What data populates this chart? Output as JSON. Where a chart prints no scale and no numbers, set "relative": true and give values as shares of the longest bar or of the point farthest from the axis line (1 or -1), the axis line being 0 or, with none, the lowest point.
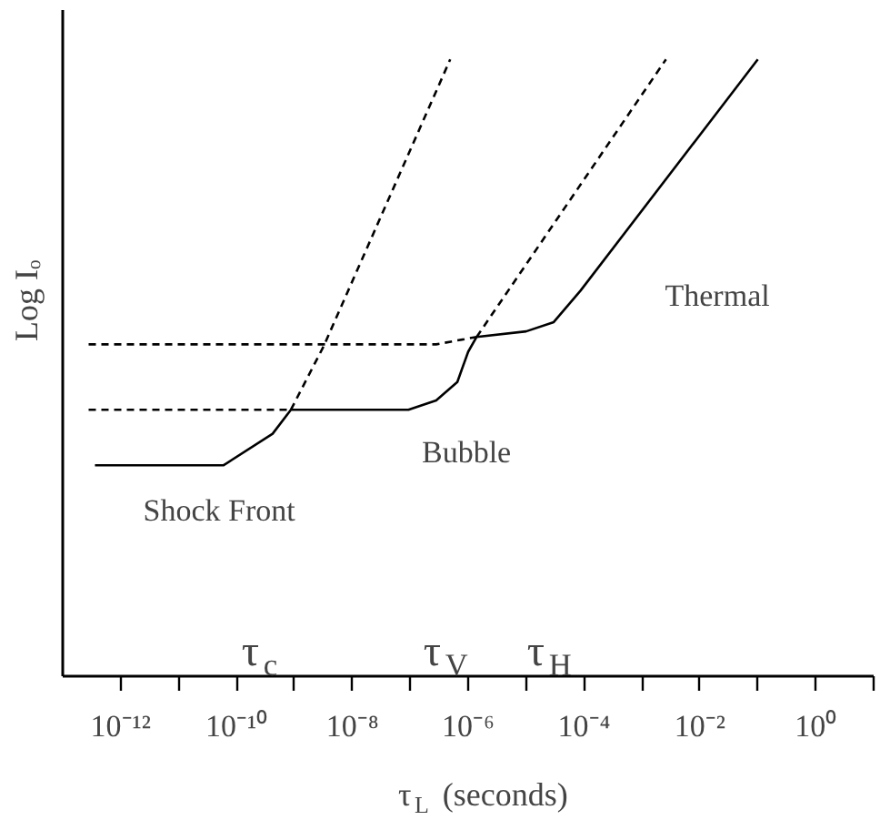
{
  "chart_data": {
    "type": "line",
    "relative": true,
    "log": "x",
    "xlabel": "τ$_{L}$ (seconds)",
    "ylabel": "Log Iₒ",
    "xlim": [
      1e-13,
      10
    ],
    "xticks": [
      {
        "value": 1e-12,
        "label": "10⁻¹²"
      },
      {
        "value": 1e-11,
        "label": null
      },
      {
        "value": 1e-10,
        "label": "10⁻¹⁰"
      },
      {
        "value": 1e-09,
        "label": null
      },
      {
        "value": 1e-08,
        "label": "10⁻⁸"
      },
      {
        "value": 1e-07,
        "label": null
      },
      {
        "value": 1e-06,
        "label": "10⁻⁶"
      },
      {
        "value": 1e-05,
        "label": null
      },
      {
        "value": 0.0001,
        "label": "10⁻⁴"
      },
      {
        "value": 0.001,
        "label": null
      },
      {
        "value": 0.01,
        "label": "10⁻²"
      },
      {
        "value": 0.1,
        "label": null
      },
      {
        "value": 1,
        "label": "10⁰"
      },
      {
        "value": 10,
        "label": null
      }
    ],
    "grid": false,
    "series": [
      {
        "color": "#000000",
        "line_style": "solid",
        "x": [
          3.6e-13,
          6e-11,
          4.2e-10,
          8.7e-10,
          9.3e-08,
          2.8e-07,
          6.5e-07,
          1e-06,
          1.4e-06,
          1e-05,
          3e-05,
          8.7e-05,
          0.1
        ],
        "values": [
          0.342,
          0.342,
          0.393,
          0.432,
          0.432,
          0.447,
          0.477,
          0.526,
          0.55,
          0.559,
          0.574,
          0.625,
          1.0
        ]
      },
      {
        "color": "#000000",
        "line_style": "dashed",
        "x": [
          8.7e-10,
          3.2e-09,
          4.9e-07
        ],
        "values": [
          0.432,
          0.535,
          1.0
        ]
      },
      {
        "color": "#000000",
        "line_style": "dashed",
        "x": [
          1.4e-06,
          0.0026
        ],
        "values": [
          0.55,
          1.0
        ]
      },
      {
        "color": "#000000",
        "line_style": "dashed",
        "x": [
          2.8e-13,
          8.7e-10
        ],
        "values": [
          0.432,
          0.432
        ]
      },
      {
        "color": "#000000",
        "line_style": "dashed",
        "x": [
          2.8e-13,
          2.8e-07,
          1.4e-06
        ],
        "values": [
          0.538,
          0.538,
          0.55
        ]
      }
    ],
    "annotations": [
      "Shock Front",
      "Bubble",
      "Thermal",
      "τ$_{c}$",
      "τ$_{V}$",
      "τ$_{H}$"
    ]
  }
}
